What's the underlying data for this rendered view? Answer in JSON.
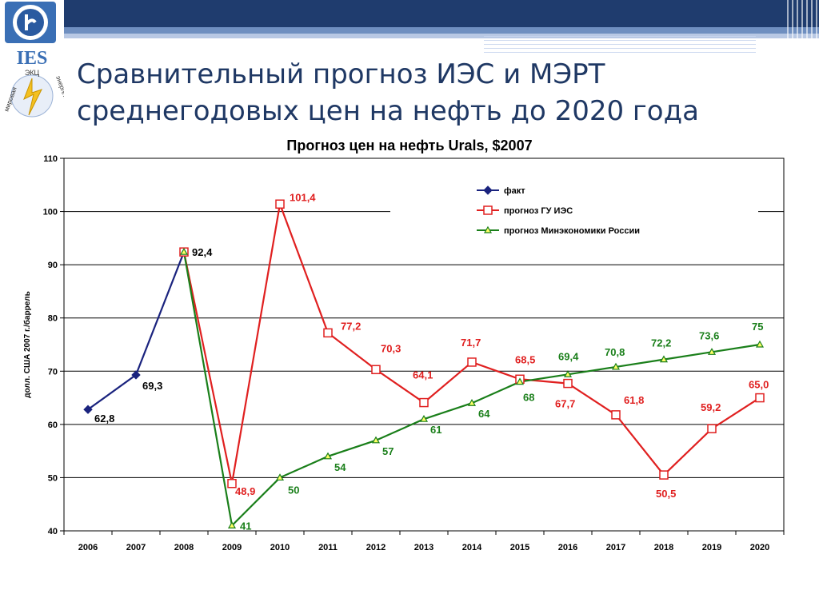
{
  "slide": {
    "title_line1": "Сравнительный прогноз ИЭС и МЭРТ",
    "title_line2": "среднегодовых цен на нефть до 2020 года"
  },
  "logo": {
    "ies_text": "IES",
    "ekc_text": "ЭКЦ",
    "left_arc_text": "мировая",
    "right_arc_text": "энергетики",
    "icon": "ies-logo-icon"
  },
  "chart_data": {
    "type": "line",
    "title": "Прогноз цен на нефть Urals, $2007",
    "ylabel": "долл. США 2007 г./баррель",
    "xlabel": "",
    "ylim": [
      40,
      110
    ],
    "yticks": [
      40,
      50,
      60,
      70,
      80,
      90,
      100,
      110
    ],
    "categories": [
      "2006",
      "2007",
      "2008",
      "2009",
      "2010",
      "2011",
      "2012",
      "2013",
      "2014",
      "2015",
      "2016",
      "2017",
      "2018",
      "2019",
      "2020"
    ],
    "grid": true,
    "legend_position": "top-right",
    "series": [
      {
        "name": "факт",
        "color": "#1a237e",
        "marker": "diamond",
        "values": [
          62.8,
          69.3,
          92.4,
          null,
          null,
          null,
          null,
          null,
          null,
          null,
          null,
          null,
          null,
          null,
          null
        ],
        "labels": [
          "62,8",
          "69,3",
          "92,4",
          "",
          "",
          "",
          "",
          "",
          "",
          "",
          "",
          "",
          "",
          "",
          ""
        ]
      },
      {
        "name": "прогноз ГУ ИЭС",
        "color": "#e02020",
        "marker": "square",
        "values": [
          null,
          null,
          92.4,
          48.9,
          101.4,
          77.2,
          70.3,
          64.1,
          71.7,
          68.5,
          67.7,
          61.8,
          50.5,
          59.2,
          65.0
        ],
        "labels": [
          "",
          "",
          "",
          "48,9",
          "101,4",
          "77,2",
          "70,3",
          "64,1",
          "71,7",
          "68,5",
          "67,7",
          "61,8",
          "50,5",
          "59,2",
          "65,0"
        ]
      },
      {
        "name": "прогноз Минэкономики России",
        "color": "#1a7f1a",
        "marker": "triangle",
        "values": [
          null,
          null,
          92.4,
          41,
          50,
          54,
          57,
          61,
          64,
          68,
          69.4,
          70.8,
          72.2,
          73.6,
          75
        ],
        "labels": [
          "",
          "",
          "",
          "41",
          "50",
          "54",
          "57",
          "61",
          "64",
          "68",
          "69,4",
          "70,8",
          "72,2",
          "73,6",
          "75"
        ]
      }
    ]
  }
}
